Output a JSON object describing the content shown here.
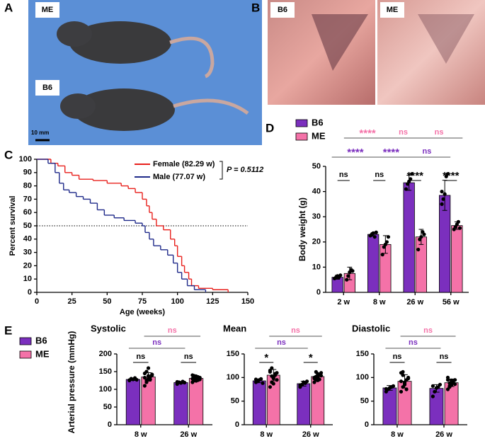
{
  "figure": {
    "panel_labels": [
      "A",
      "B",
      "C",
      "D",
      "E"
    ],
    "photo_a_labels": [
      "ME",
      "B6"
    ],
    "scale_bar": "10 mm",
    "photo_b_labels": [
      "B6",
      "ME"
    ]
  },
  "chart_data": [
    {
      "type": "line",
      "step": true,
      "x_label": "Age (weeks)",
      "y_label": "Percent survival",
      "xlim": [
        0,
        150
      ],
      "xticks": [
        0,
        25,
        50,
        75,
        100,
        125,
        150
      ],
      "ylim": [
        0,
        100
      ],
      "yticks": [
        0,
        10,
        20,
        30,
        40,
        50,
        60,
        70,
        80,
        90,
        100
      ],
      "hline": 50,
      "annotation": "P = 0.5112",
      "series": [
        {
          "name": "Female (82.29 w)",
          "color": "#e8201c",
          "x": [
            0,
            10,
            15,
            20,
            25,
            30,
            40,
            50,
            60,
            65,
            70,
            75,
            78,
            80,
            82,
            85,
            90,
            95,
            98,
            100,
            103,
            105,
            108,
            110,
            115,
            125,
            136
          ],
          "values": [
            100,
            97,
            95,
            90,
            88,
            85,
            84,
            82,
            80,
            78,
            75,
            70,
            65,
            60,
            55,
            50,
            47,
            40,
            35,
            27,
            20,
            15,
            10,
            5,
            3,
            2,
            0
          ]
        },
        {
          "name": "Male (77.07 w)",
          "color": "#1f2a8a",
          "x": [
            0,
            8,
            13,
            16,
            19,
            23,
            28,
            33,
            38,
            43,
            48,
            55,
            62,
            70,
            75,
            77,
            80,
            83,
            88,
            93,
            97,
            100,
            103,
            107,
            112,
            120
          ],
          "values": [
            100,
            97,
            90,
            82,
            77,
            75,
            72,
            70,
            67,
            62,
            58,
            56,
            54,
            52,
            50,
            45,
            40,
            35,
            32,
            28,
            22,
            15,
            10,
            5,
            2,
            0
          ]
        }
      ]
    },
    {
      "type": "bar",
      "y_label": "Body weight (g)",
      "categories": [
        "2 w",
        "8 w",
        "26 w",
        "56 w"
      ],
      "ylim": [
        0,
        50
      ],
      "yticks": [
        0,
        10,
        20,
        30,
        40,
        50
      ],
      "series": [
        {
          "name": "B6",
          "color": "#7b2fbe",
          "values": [
            6,
            23,
            43.5,
            38.5
          ],
          "errors": [
            0.8,
            0.7,
            3,
            6
          ],
          "points": [
            [
              5.5,
              6,
              6.5,
              6,
              6.8
            ],
            [
              22.5,
              23,
              23.5,
              22,
              23.8
            ],
            [
              41,
              43,
              44,
              45,
              47
            ],
            [
              35,
              37,
              39,
              46,
              47,
              40
            ]
          ]
        },
        {
          "name": "ME",
          "color": "#f472a8",
          "values": [
            7.5,
            19,
            22,
            26.5
          ],
          "errors": [
            2.5,
            3.5,
            3,
            1.5
          ],
          "points": [
            [
              5,
              6.5,
              8,
              9,
              8.5
            ],
            [
              15,
              18,
              19,
              20,
              22
            ],
            [
              17,
              21,
              22,
              24,
              23
            ],
            [
              25,
              26,
              27,
              28,
              25.5
            ]
          ]
        }
      ],
      "annotations": [
        {
          "label": "ns",
          "category": 0
        },
        {
          "label": "ns",
          "category": 1
        },
        {
          "label": "****",
          "category": 2
        },
        {
          "label": "****",
          "category": 3
        },
        {
          "label": "****",
          "series": 0,
          "from": 0,
          "to": 1
        },
        {
          "label": "****",
          "series": 0,
          "from": 1,
          "to": 2
        },
        {
          "label": "ns",
          "series": 0,
          "from": 2,
          "to": 3
        },
        {
          "label": "****",
          "series": 1,
          "from": 0,
          "to": 1
        },
        {
          "label": "ns",
          "series": 1,
          "from": 1,
          "to": 2
        },
        {
          "label": "ns",
          "series": 1,
          "from": 2,
          "to": 3
        }
      ]
    },
    {
      "type": "bar",
      "title": "Systolic",
      "y_label": "Arterial pressure (mmHg)",
      "categories": [
        "8 w",
        "26 w"
      ],
      "ylim": [
        0,
        200
      ],
      "yticks": [
        0,
        50,
        100,
        150,
        200
      ],
      "series": [
        {
          "name": "B6",
          "color": "#7b2fbe",
          "values": [
            128,
            119
          ],
          "errors": [
            3,
            3
          ],
          "points": [
            [
              125,
              130,
              128,
              132,
              127,
              126
            ],
            [
              115,
              120,
              118,
              122,
              119,
              121
            ]
          ]
        },
        {
          "name": "ME",
          "color": "#f472a8",
          "values": [
            135,
            131
          ],
          "errors": [
            12,
            7
          ],
          "points": [
            [
              110,
              120,
              130,
              135,
              140,
              145,
              150,
              138,
              128,
              142,
              133,
              125,
              160
            ],
            [
              120,
              125,
              130,
              135,
              128,
              140,
              132,
              137,
              126,
              133,
              130,
              138,
              124
            ]
          ]
        }
      ],
      "annotations": [
        {
          "label": "ns",
          "category": 0
        },
        {
          "label": "ns",
          "category": 1
        },
        {
          "label": "ns",
          "series": 0,
          "from": 0,
          "to": 1
        },
        {
          "label": "ns",
          "series": 1,
          "from": 0,
          "to": 1
        }
      ]
    },
    {
      "type": "bar",
      "title": "Mean",
      "categories": [
        "8 w",
        "26 w"
      ],
      "ylim": [
        0,
        150
      ],
      "yticks": [
        0,
        50,
        100,
        150
      ],
      "series": [
        {
          "name": "B6",
          "color": "#7b2fbe",
          "values": [
            93,
            87
          ],
          "errors": [
            4,
            5
          ],
          "points": [
            [
              90,
              92,
              95,
              97,
              88,
              96
            ],
            [
              80,
              85,
              90,
              88,
              92,
              84
            ]
          ]
        },
        {
          "name": "ME",
          "color": "#f472a8",
          "values": [
            105,
            102
          ],
          "errors": [
            12,
            7
          ],
          "points": [
            [
              80,
              90,
              100,
              105,
              110,
              115,
              120,
              98,
              108,
              95,
              112,
              103,
              87
            ],
            [
              90,
              95,
              100,
              105,
              110,
              98,
              102,
              108,
              96,
              104,
              100,
              112,
              94
            ]
          ]
        }
      ],
      "annotations": [
        {
          "label": "*",
          "category": 0
        },
        {
          "label": "*",
          "category": 1
        },
        {
          "label": "ns",
          "series": 0,
          "from": 0,
          "to": 1
        },
        {
          "label": "ns",
          "series": 1,
          "from": 0,
          "to": 1
        }
      ]
    },
    {
      "type": "bar",
      "title": "Diastolic",
      "categories": [
        "8 w",
        "26 w"
      ],
      "ylim": [
        0,
        150
      ],
      "yticks": [
        0,
        50,
        100,
        150
      ],
      "series": [
        {
          "name": "B6",
          "color": "#7b2fbe",
          "values": [
            78,
            77
          ],
          "errors": [
            5,
            8
          ],
          "points": [
            [
              70,
              75,
              78,
              80,
              82,
              76
            ],
            [
              60,
              70,
              78,
              80,
              85,
              82
            ]
          ]
        },
        {
          "name": "ME",
          "color": "#f472a8",
          "values": [
            92,
            89
          ],
          "errors": [
            14,
            8
          ],
          "points": [
            [
              70,
              80,
              90,
              95,
              100,
              110,
              105,
              85,
              75,
              98,
              92,
              112,
              88
            ],
            [
              75,
              80,
              85,
              90,
              95,
              100,
              88,
              84,
              92,
              86,
              95,
              82,
              94
            ]
          ]
        }
      ],
      "annotations": [
        {
          "label": "ns",
          "category": 0
        },
        {
          "label": "ns",
          "category": 1
        },
        {
          "label": "ns",
          "series": 0,
          "from": 0,
          "to": 1
        },
        {
          "label": "ns",
          "series": 1,
          "from": 0,
          "to": 1
        }
      ]
    }
  ]
}
